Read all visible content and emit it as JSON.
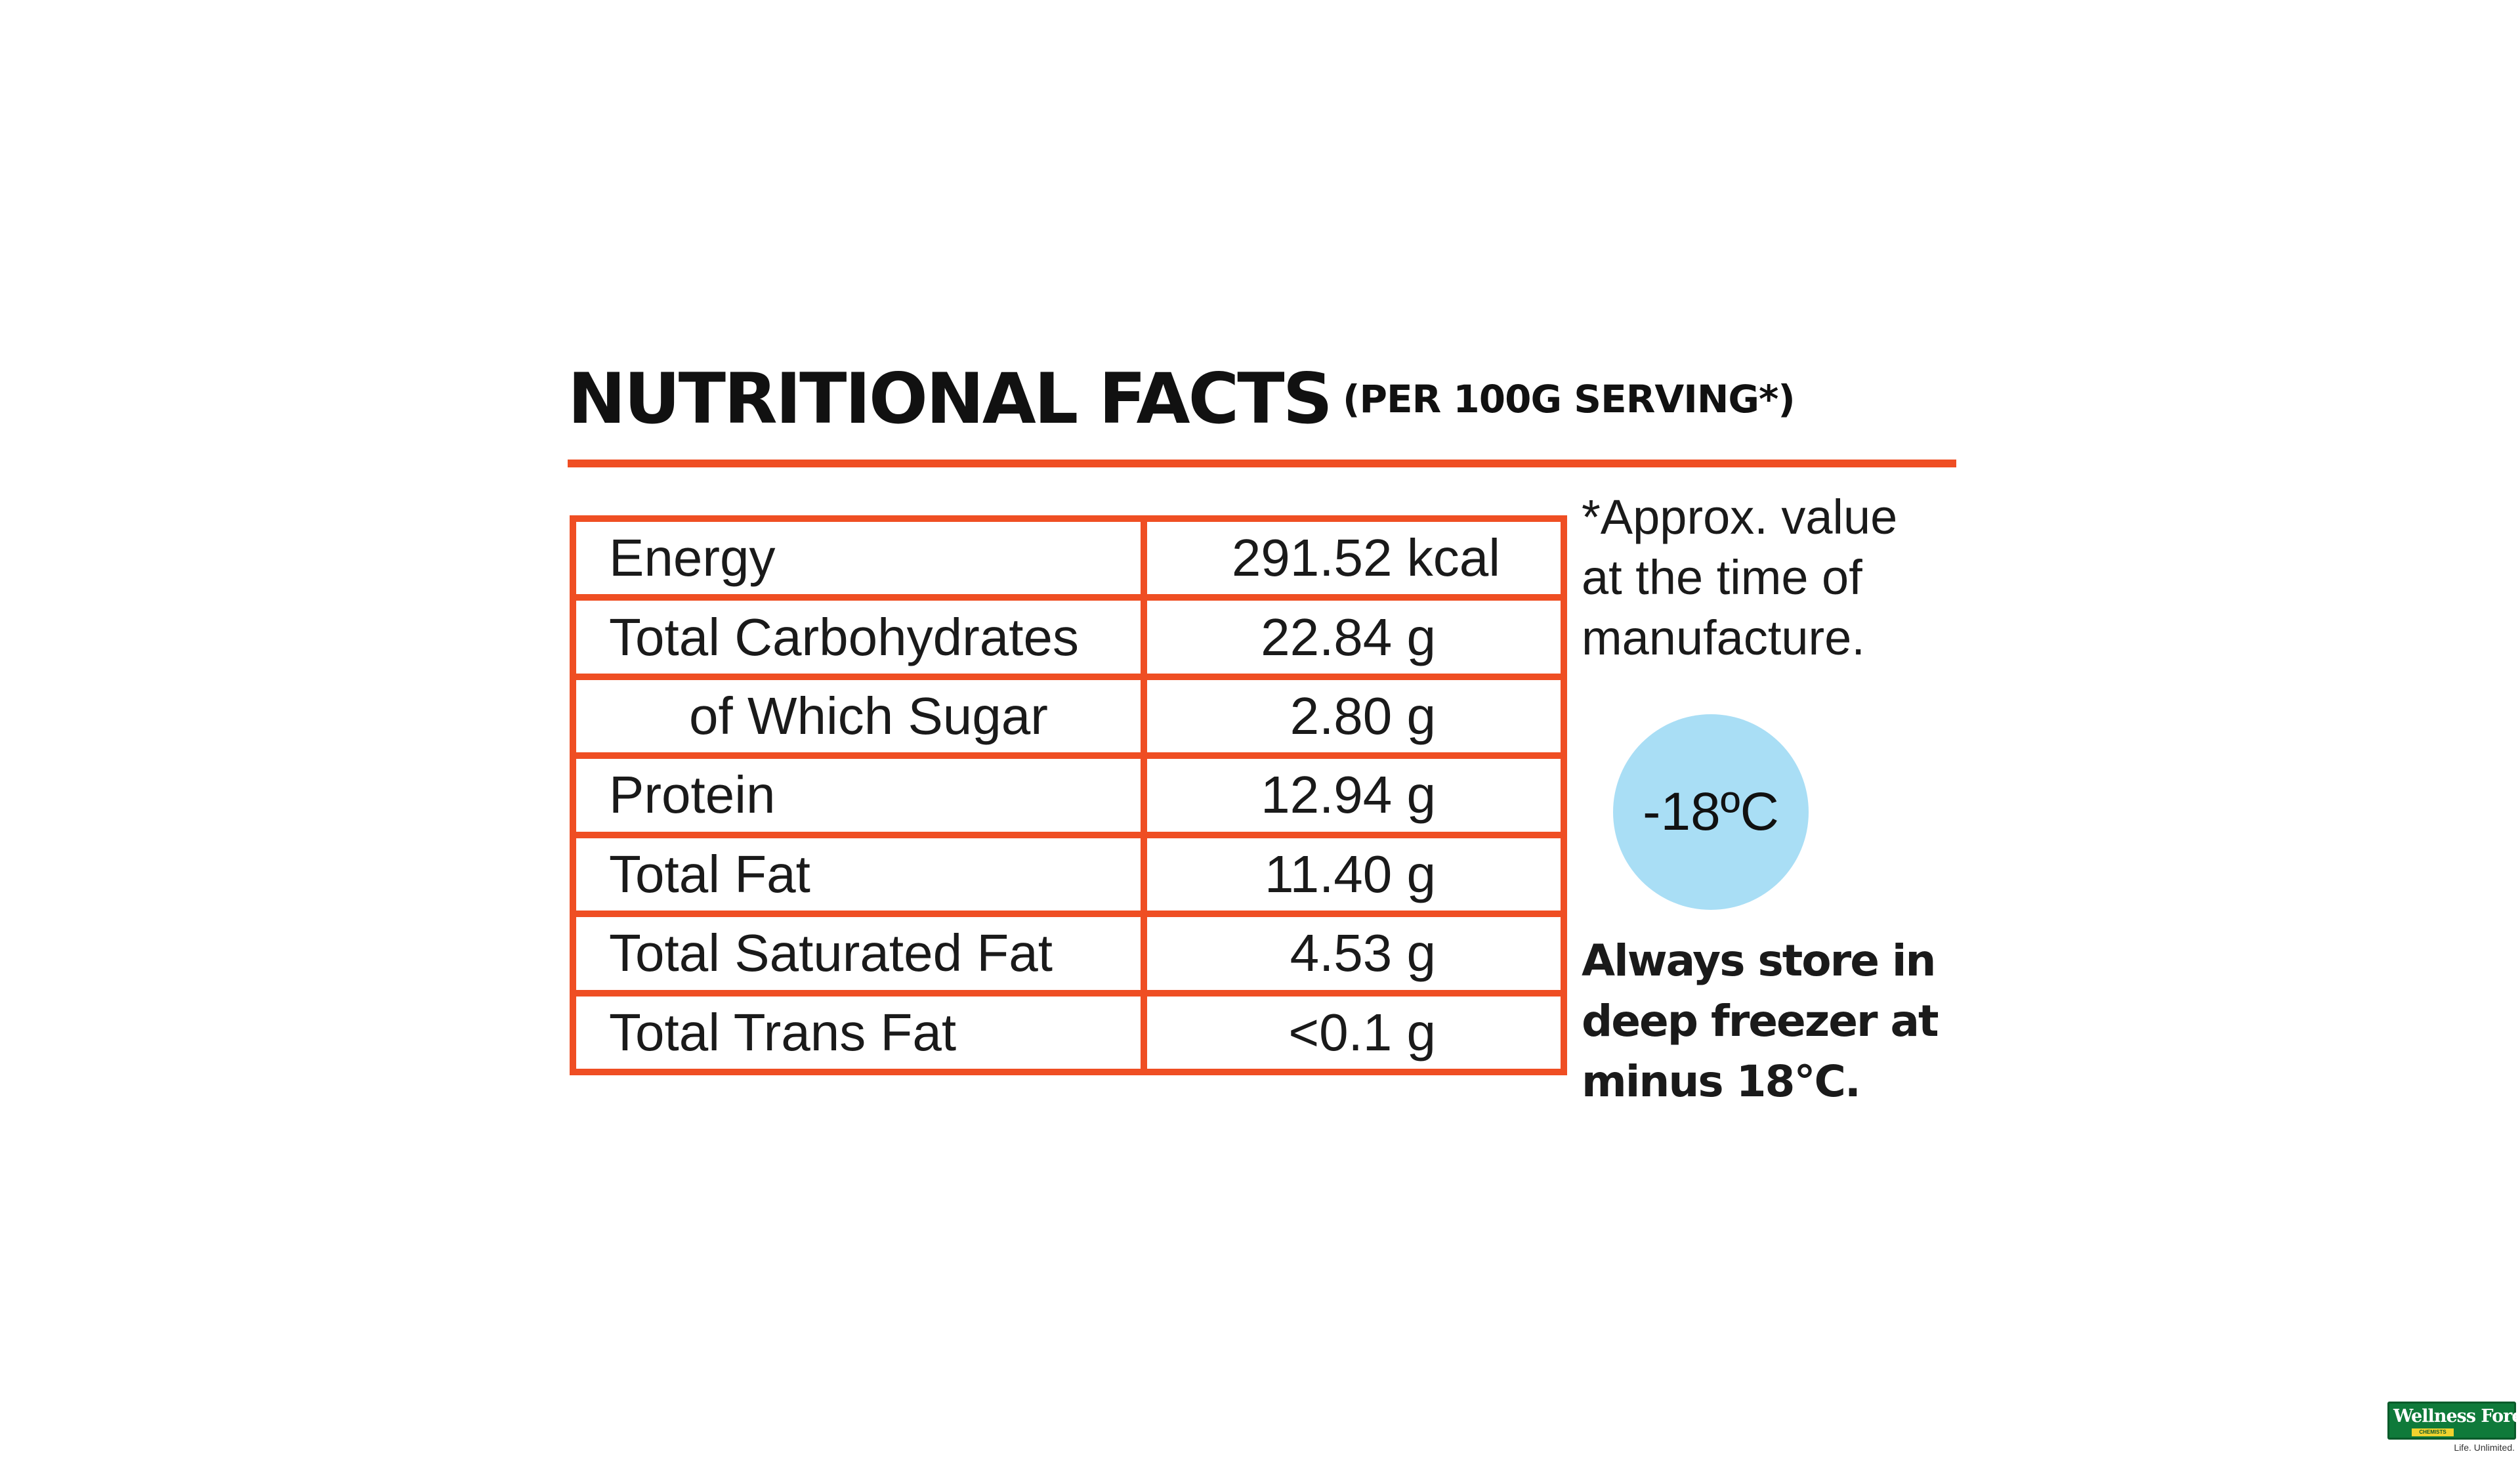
{
  "title": {
    "main": "NUTRITIONAL FACTS",
    "sub": "(PER 100G SERVING*)"
  },
  "nutrients": [
    {
      "name": "Energy",
      "value": "291.52 kcal"
    },
    {
      "name": "Total Carbohydrates",
      "value": "22.84 g"
    },
    {
      "name": "of Which Sugar",
      "value": "2.80 g"
    },
    {
      "name": "Protein",
      "value": "12.94 g"
    },
    {
      "name": "Total Fat",
      "value": "11.40 g"
    },
    {
      "name": "Total Saturated Fat",
      "value": "4.53 g"
    },
    {
      "name": "Total Trans Fat",
      "value": "<0.1 g"
    }
  ],
  "footnote": "*Approx. value at the time of manufacture.",
  "temperature_badge": {
    "text": "-18ºC",
    "color": "#a9def5"
  },
  "storage_note": "Always store in deep freezer at minus 18°C.",
  "brand": {
    "name": "Wellness Forever",
    "sub": "CHEMISTS",
    "tagline": "Life. Unlimited."
  },
  "colors": {
    "accent": "#ef4e23",
    "text": "#111111",
    "badge": "#a9def5",
    "brand_green": "#0f7a3a"
  }
}
